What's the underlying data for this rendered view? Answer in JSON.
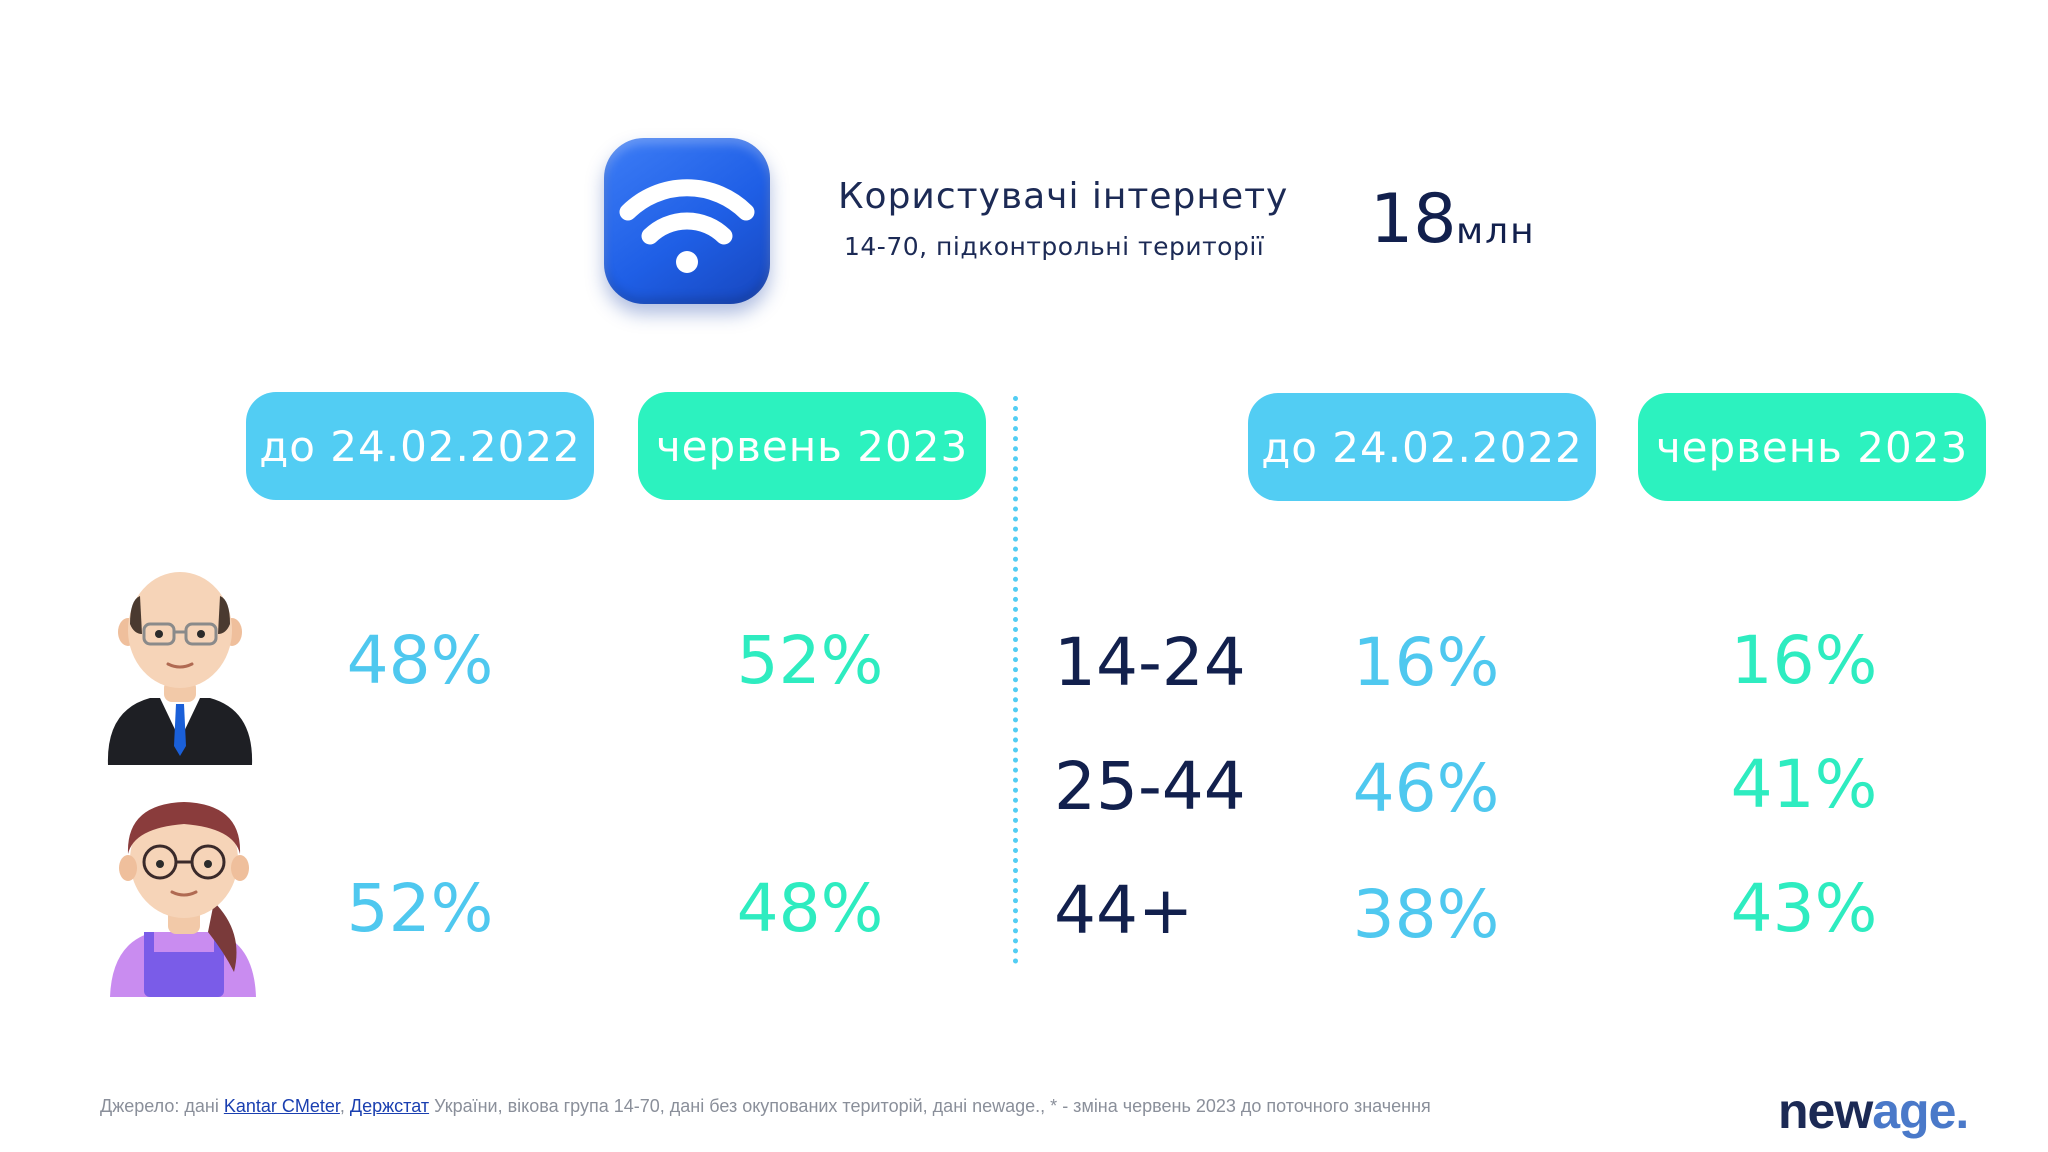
{
  "header": {
    "title": "Користувачі інтернету",
    "subtitle": "14-70, підконтрольні території",
    "total_value": "18",
    "total_unit": "млн"
  },
  "gender_section": {
    "columns": [
      {
        "label": "до 24.02.2022",
        "color": "#52cdf3"
      },
      {
        "label": "червень 2023",
        "color": "#2cf2bf"
      }
    ],
    "rows": [
      {
        "avatar": "male-businessman-avatar",
        "values": [
          "48%",
          "52%"
        ]
      },
      {
        "avatar": "female-glasses-avatar",
        "values": [
          "52%",
          "48%"
        ]
      }
    ]
  },
  "age_section": {
    "columns": [
      {
        "label": "до 24.02.2022",
        "color": "#52cdf3"
      },
      {
        "label": "червень 2023",
        "color": "#2cf2bf"
      }
    ],
    "rows": [
      {
        "age": "14-24",
        "values": [
          "16%",
          "16%"
        ]
      },
      {
        "age": "25-44",
        "values": [
          "46%",
          "41%"
        ]
      },
      {
        "age": "44+",
        "values": [
          "38%",
          "43%"
        ]
      }
    ]
  },
  "footer": {
    "prefix": "Джерело: дані ",
    "link1": "Kantar CMeter",
    "sep": ", ",
    "link2": "Держстат",
    "suffix": " України, вікова група 14-70, дані без окупованих територій, дані newage., * - зміна червень 2023 до поточного значення"
  },
  "logo": {
    "part1": "new",
    "part2": "age."
  },
  "icons": {
    "wifi": "wifi-icon"
  }
}
